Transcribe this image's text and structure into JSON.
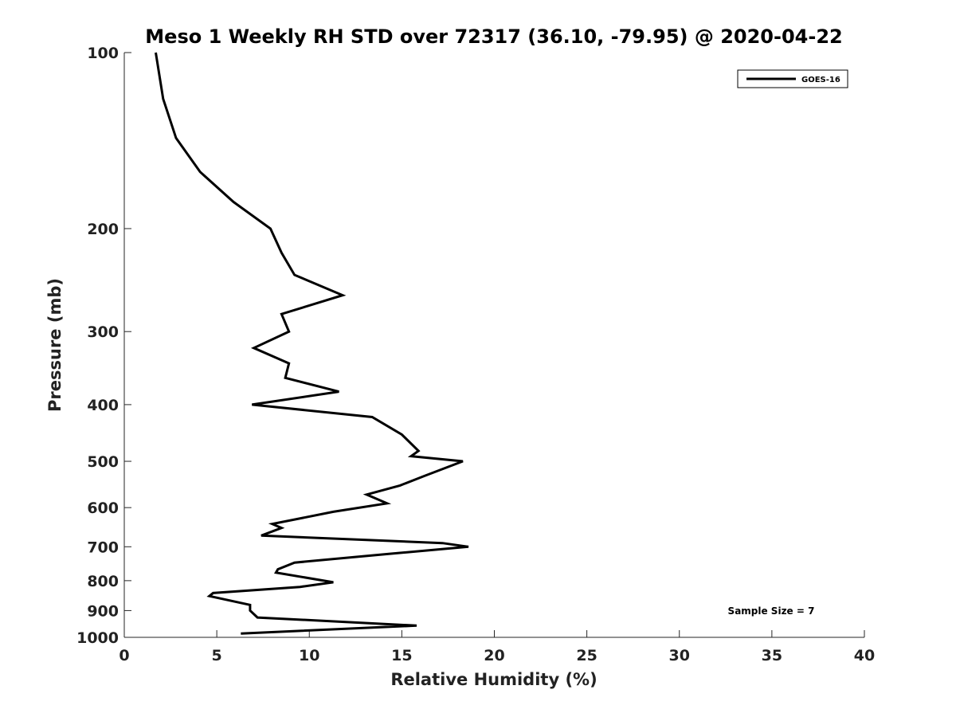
{
  "chart_data": {
    "type": "line",
    "title": "Meso 1 Weekly RH STD over 72317 (36.10, -79.95) @ 2020-04-22",
    "xlabel": "Relative Humidity (%)",
    "ylabel": "Pressure (mb)",
    "xlim": [
      0,
      40
    ],
    "ylim": [
      100,
      1000
    ],
    "y_scale": "log",
    "y_reversed": true,
    "x_ticks": [
      0,
      5,
      10,
      15,
      20,
      25,
      30,
      35,
      40
    ],
    "y_ticks": [
      100,
      200,
      300,
      400,
      500,
      600,
      700,
      800,
      900,
      1000
    ],
    "grid": false,
    "legend_position": "top-right",
    "annotation": "Sample Size = 7",
    "series": [
      {
        "name": "GOES-16",
        "color": "#000000",
        "points": [
          [
            1.7,
            100
          ],
          [
            2.1,
            120
          ],
          [
            2.8,
            140
          ],
          [
            4.1,
            160
          ],
          [
            5.9,
            180
          ],
          [
            7.9,
            200
          ],
          [
            8.5,
            220
          ],
          [
            9.2,
            240
          ],
          [
            11.8,
            260
          ],
          [
            8.5,
            280
          ],
          [
            8.9,
            300
          ],
          [
            7.0,
            320
          ],
          [
            8.9,
            340
          ],
          [
            8.7,
            360
          ],
          [
            11.6,
            380
          ],
          [
            6.9,
            400
          ],
          [
            13.4,
            420
          ],
          [
            15.0,
            450
          ],
          [
            15.9,
            480
          ],
          [
            15.5,
            490
          ],
          [
            18.3,
            500
          ],
          [
            16.2,
            530
          ],
          [
            14.9,
            550
          ],
          [
            13.1,
            570
          ],
          [
            14.2,
            590
          ],
          [
            11.3,
            610
          ],
          [
            8.0,
            640
          ],
          [
            8.5,
            650
          ],
          [
            7.4,
            670
          ],
          [
            17.2,
            690
          ],
          [
            18.6,
            700
          ],
          [
            14.3,
            720
          ],
          [
            9.2,
            745
          ],
          [
            8.3,
            765
          ],
          [
            8.2,
            775
          ],
          [
            11.3,
            805
          ],
          [
            9.5,
            820
          ],
          [
            4.8,
            840
          ],
          [
            4.6,
            850
          ],
          [
            6.8,
            880
          ],
          [
            6.8,
            900
          ],
          [
            7.2,
            925
          ],
          [
            15.8,
            955
          ],
          [
            6.3,
            985
          ]
        ]
      }
    ]
  }
}
